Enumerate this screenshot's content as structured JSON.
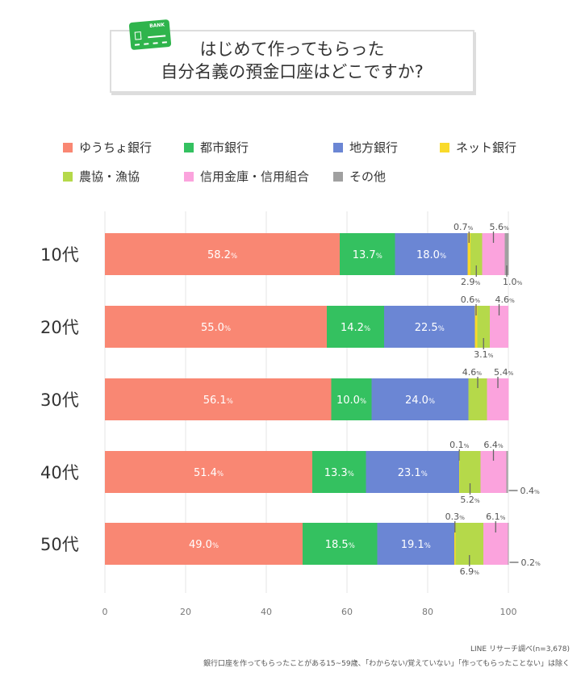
{
  "title_lines": [
    "はじめて作ってもらった",
    "自分名義の預金口座はどこですか?"
  ],
  "card_label": "BANK",
  "chart_data": {
    "type": "bar",
    "orientation": "horizontal",
    "stacked": true,
    "categories": [
      "10代",
      "20代",
      "30代",
      "40代",
      "50代"
    ],
    "xlim": [
      0,
      100
    ],
    "xticks": [
      0,
      20,
      40,
      60,
      80,
      100
    ],
    "grid": true,
    "legend_position": "top",
    "unit": "%",
    "series": [
      {
        "name": "ゆうちょ銀行",
        "color": "#F98773",
        "values": [
          58.2,
          55.0,
          56.1,
          51.4,
          49.0
        ]
      },
      {
        "name": "都市銀行",
        "color": "#34C160",
        "values": [
          13.7,
          14.2,
          10.0,
          13.3,
          18.5
        ]
      },
      {
        "name": "地方銀行",
        "color": "#6B86D4",
        "values": [
          18.0,
          22.5,
          24.0,
          23.1,
          19.1
        ]
      },
      {
        "name": "ネット銀行",
        "color": "#F9DA2A",
        "values": [
          0.7,
          0.6,
          null,
          0.1,
          0.3
        ]
      },
      {
        "name": "農協・漁協",
        "color": "#B5D94A",
        "values": [
          2.9,
          3.1,
          4.6,
          5.2,
          6.9
        ]
      },
      {
        "name": "信用金庫・信用組合",
        "color": "#FBA3DD",
        "values": [
          5.6,
          4.6,
          5.4,
          6.4,
          6.1
        ]
      },
      {
        "name": "その他",
        "color": "#A0A0A0",
        "values": [
          1.0,
          null,
          null,
          0.4,
          0.2
        ]
      }
    ]
  },
  "source": "LINE リサーチ調べ(n=3,678)",
  "footnote": "銀行口座を作ってもらったことがある15~59歳、「わからない/覚えていない」「作ってもらったことない」は除く"
}
